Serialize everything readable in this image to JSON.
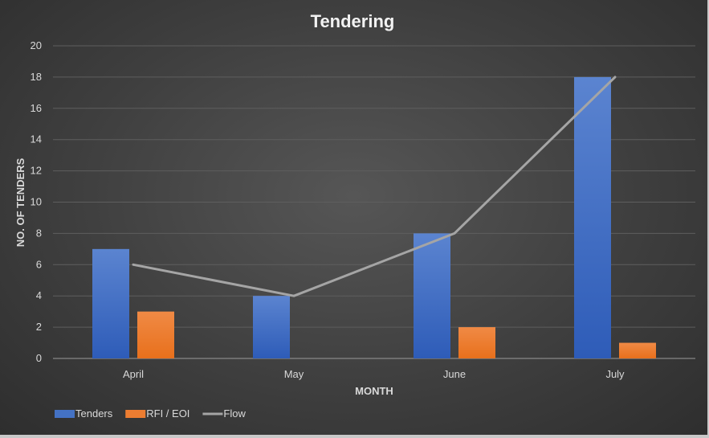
{
  "chart_data": {
    "type": "bar",
    "title": "Tendering",
    "xlabel": "MONTH",
    "ylabel": "NO. OF TENDERS",
    "categories": [
      "April",
      "May",
      "June",
      "July"
    ],
    "ylim": [
      0,
      20
    ],
    "yticks": [
      0,
      2,
      4,
      6,
      8,
      10,
      12,
      14,
      16,
      18,
      20
    ],
    "grid": true,
    "legend_position": "bottom-left",
    "series": [
      {
        "name": "Tenders",
        "kind": "bar",
        "color": "#4472c4",
        "values": [
          7,
          4,
          8,
          18
        ]
      },
      {
        "name": "RFI / EOI",
        "kind": "bar",
        "color": "#ed7d31",
        "values": [
          3,
          0,
          2,
          1
        ]
      },
      {
        "name": "Flow",
        "kind": "line",
        "color": "#a5a5a5",
        "values": [
          6,
          4,
          8,
          18
        ]
      }
    ]
  }
}
